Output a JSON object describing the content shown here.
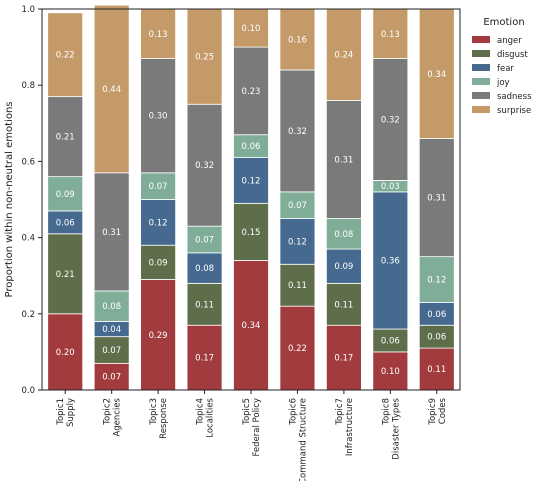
{
  "chart_data": {
    "type": "bar",
    "stacked": true,
    "ylabel": "Proportion within non-neutral emotions",
    "ylim": [
      0,
      1.0
    ],
    "yticks": [
      "0.0",
      "0.2",
      "0.4",
      "0.6",
      "0.8",
      "1.0"
    ],
    "categories": [
      [
        "Topic1",
        "Supply"
      ],
      [
        "Topic2",
        "Agencies"
      ],
      [
        "Topic3",
        "Response"
      ],
      [
        "Topic4",
        "Localities"
      ],
      [
        "Topic5",
        "Federal Policy"
      ],
      [
        "Topic6",
        "Command Structure"
      ],
      [
        "Topic7",
        "Infrastructure"
      ],
      [
        "Topic8",
        "Disaster Types"
      ],
      [
        "Topic9",
        "Codes"
      ]
    ],
    "series": [
      {
        "name": "anger",
        "color": "#A23B3E",
        "values": [
          0.2,
          0.07,
          0.29,
          0.17,
          0.34,
          0.22,
          0.17,
          0.1,
          0.11
        ]
      },
      {
        "name": "disgust",
        "color": "#5F6E4A",
        "values": [
          0.21,
          0.07,
          0.09,
          0.11,
          0.15,
          0.11,
          0.11,
          0.06,
          0.06
        ]
      },
      {
        "name": "fear",
        "color": "#45698F",
        "values": [
          0.06,
          0.04,
          0.12,
          0.08,
          0.12,
          0.12,
          0.09,
          0.36,
          0.06
        ]
      },
      {
        "name": "joy",
        "color": "#7FAD98",
        "values": [
          0.09,
          0.08,
          0.07,
          0.07,
          0.06,
          0.07,
          0.08,
          0.03,
          0.12
        ]
      },
      {
        "name": "sadness",
        "color": "#7A7A7A",
        "values": [
          0.21,
          0.31,
          0.3,
          0.32,
          0.23,
          0.32,
          0.31,
          0.32,
          0.31
        ]
      },
      {
        "name": "surprise",
        "color": "#C49A69",
        "values": [
          0.22,
          0.44,
          0.13,
          0.25,
          0.1,
          0.16,
          0.24,
          0.13,
          0.34
        ]
      }
    ],
    "legend": {
      "title": "Emotion",
      "position": "outside-top-right"
    },
    "grid": false
  }
}
